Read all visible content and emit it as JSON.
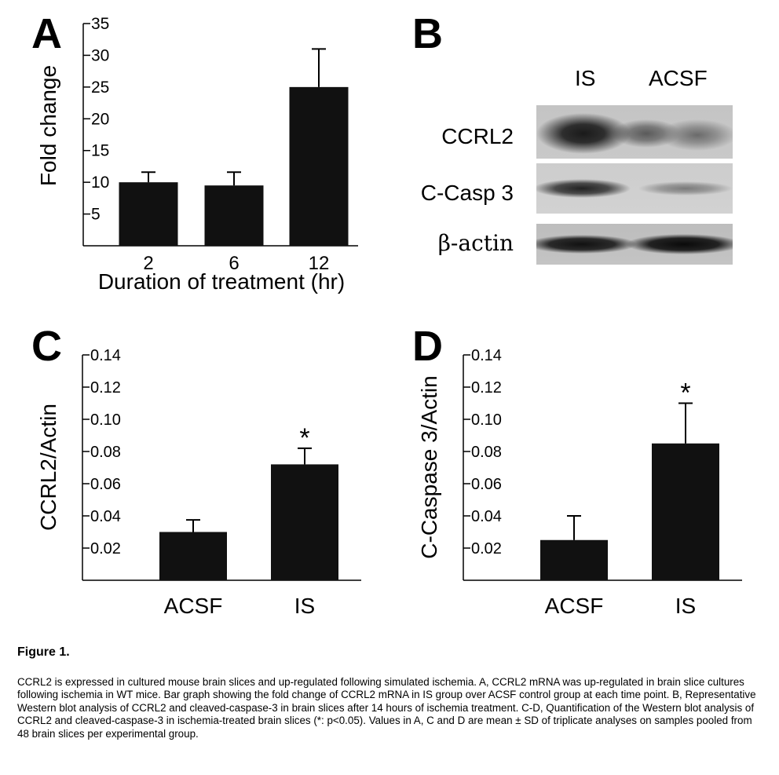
{
  "panels": {
    "a": "A",
    "b": "B",
    "c": "C",
    "d": "D"
  },
  "blot": {
    "lanes": [
      "IS",
      "ACSF"
    ],
    "rows": [
      "CCRL2",
      "C-Casp 3",
      "β-actin"
    ]
  },
  "figure": {
    "title": "Figure 1.",
    "caption": "CCRL2 is expressed in cultured mouse brain slices and up-regulated following simulated ischemia. A, CCRL2 mRNA was up-regulated in brain slice cultures following ischemia in WT mice. Bar graph showing the fold change of CCRL2 mRNA in IS group over ACSF control group at each time point. B, Representative Western blot analysis of CCRL2 and cleaved-caspase-3 in brain slices after 14 hours of ischemia treatment. C-D, Quantification of the Western blot analysis of CCRL2 and cleaved-caspase-3 in ischemia-treated brain slices (*: p<0.05). Values in A, C and D are mean ± SD of triplicate analyses on samples pooled from 48 brain slices per experimental group."
  },
  "chart_data": [
    {
      "panel": "A",
      "type": "bar",
      "categories": [
        "2",
        "6",
        "12"
      ],
      "values": [
        10,
        9.5,
        25
      ],
      "errors": [
        1.6,
        2.1,
        6
      ],
      "xlabel": "Duration of treatment (hr)",
      "ylabel": "Fold change",
      "ylim": [
        0,
        35
      ],
      "yticks": [
        "5",
        "10",
        "15",
        "20",
        "25",
        "30",
        "35"
      ],
      "star": [
        false,
        false,
        false
      ],
      "color": "#111111"
    },
    {
      "panel": "C",
      "type": "bar",
      "categories": [
        "ACSF",
        "IS"
      ],
      "values": [
        0.03,
        0.072
      ],
      "errors": [
        0.0075,
        0.01
      ],
      "xlabel": "",
      "ylabel": "CCRL2/Actin",
      "ylim": [
        0,
        0.14
      ],
      "yticks": [
        "0.02",
        "0.04",
        "0.06",
        "0.08",
        "0.10",
        "0.12",
        "0.14"
      ],
      "star": [
        false,
        true
      ],
      "annotation": "*",
      "color": "#111111"
    },
    {
      "panel": "D",
      "type": "bar",
      "categories": [
        "ACSF",
        "IS"
      ],
      "values": [
        0.025,
        0.085
      ],
      "errors": [
        0.015,
        0.025
      ],
      "xlabel": "",
      "ylabel": "C-Caspase 3/Actin",
      "ylim": [
        0,
        0.14
      ],
      "yticks": [
        "0.02",
        "0.04",
        "0.06",
        "0.08",
        "0.10",
        "0.12",
        "0.14"
      ],
      "star": [
        false,
        true
      ],
      "annotation": "*",
      "color": "#111111"
    }
  ]
}
